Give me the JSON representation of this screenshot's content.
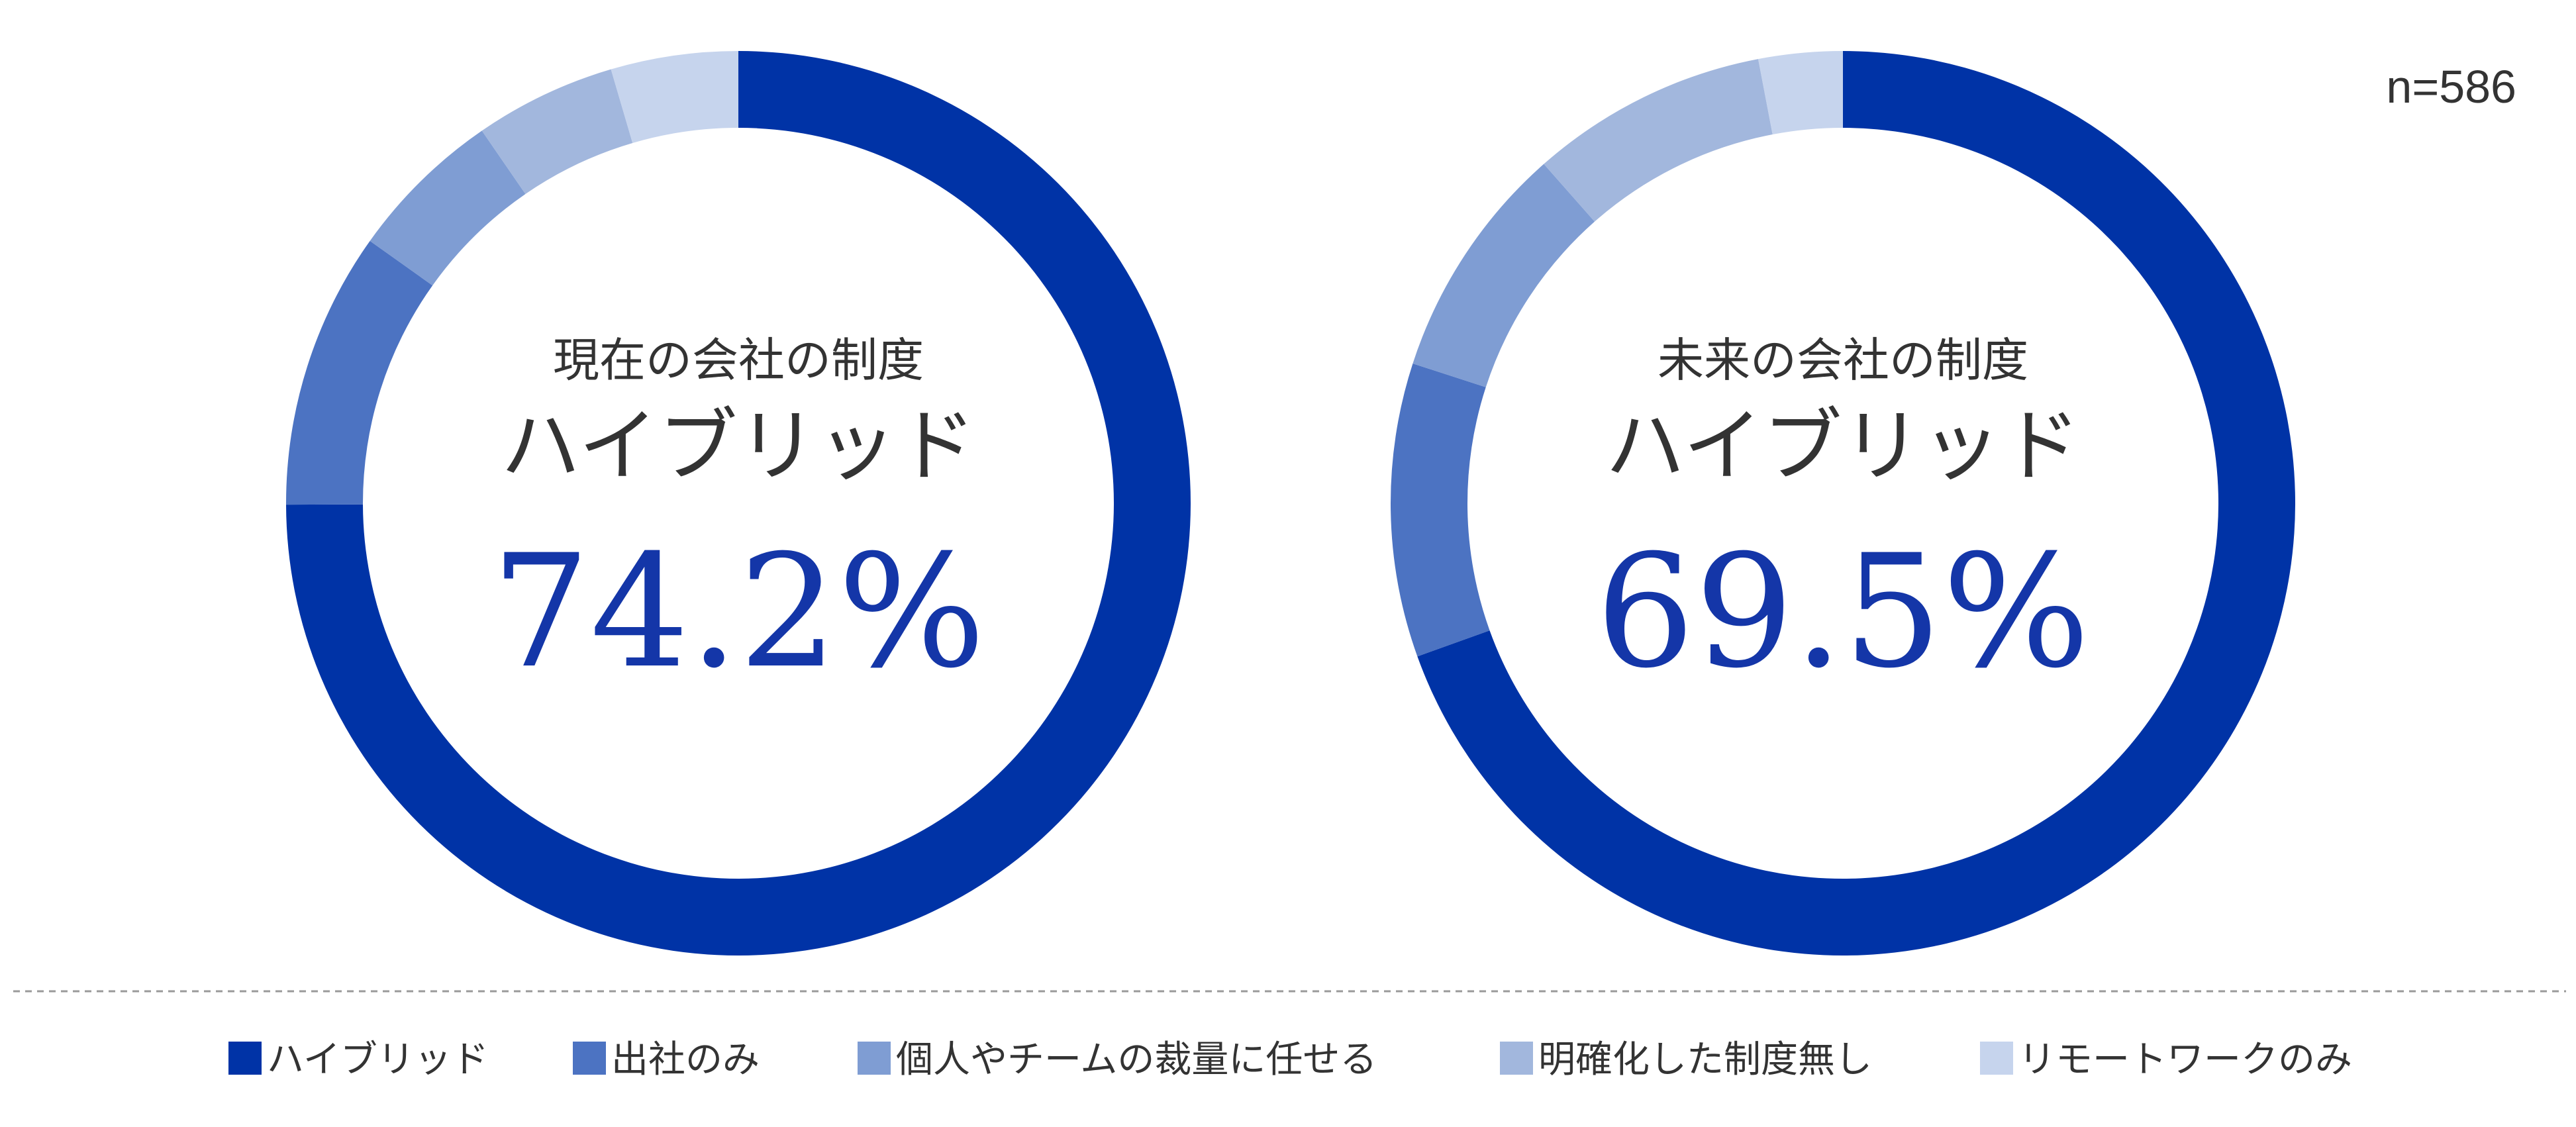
{
  "sample_size": "n=586",
  "colors": {
    "hybrid": "#0033a6",
    "office_only": "#4c73c2",
    "individual": "#7f9dd3",
    "none": "#a2b7dd",
    "remote_only": "#c6d4ed",
    "primary_text": "#333333",
    "percent_text": "#1436a8"
  },
  "chart_data": [
    {
      "type": "pie",
      "donut": true,
      "title": "現在の会社の制度",
      "highlight_category": "ハイブリッド",
      "highlight_value_label": "74.2%",
      "slices": [
        {
          "label": "ハイブリッド",
          "value": 74.2,
          "color": "#0033a6"
        },
        {
          "label": "出社のみ",
          "value": 9.8,
          "color": "#4c73c2"
        },
        {
          "label": "個人やチームの裁量に任せる",
          "value": 5.5,
          "color": "#7f9dd3"
        },
        {
          "label": "明確化した制度無し",
          "value": 5.0,
          "color": "#a2b7dd"
        },
        {
          "label": "リモートワークのみ",
          "value": 4.5,
          "color": "#c6d4ed"
        }
      ],
      "legend": "bottom"
    },
    {
      "type": "pie",
      "donut": true,
      "title": "未来の会社の制度",
      "highlight_category": "ハイブリッド",
      "highlight_value_label": "69.5%",
      "slices": [
        {
          "label": "ハイブリッド",
          "value": 69.5,
          "color": "#0033a6"
        },
        {
          "label": "出社のみ",
          "value": 10.5,
          "color": "#4c73c2"
        },
        {
          "label": "個人やチームの裁量に任せる",
          "value": 8.5,
          "color": "#7f9dd3"
        },
        {
          "label": "明確化した制度無し",
          "value": 8.5,
          "color": "#a2b7dd"
        },
        {
          "label": "リモートワークのみ",
          "value": 3.0,
          "color": "#c6d4ed"
        }
      ],
      "legend": "bottom"
    }
  ],
  "legend": {
    "items": [
      {
        "label": "ハイブリッド",
        "color": "#0033a6"
      },
      {
        "label": "出社のみ",
        "color": "#4c73c2"
      },
      {
        "label": "個人やチームの裁量に任せる",
        "color": "#7f9dd3"
      },
      {
        "label": "明確化した制度無し",
        "color": "#a2b7dd"
      },
      {
        "label": "リモートワークのみ",
        "color": "#c6d4ed"
      }
    ]
  }
}
